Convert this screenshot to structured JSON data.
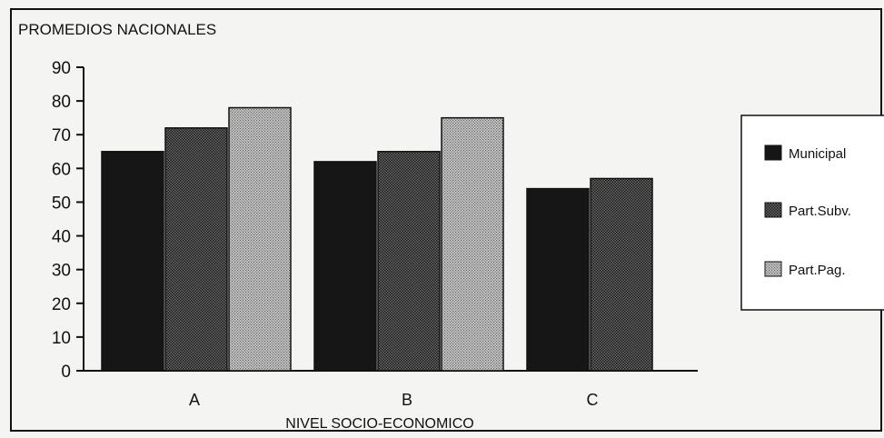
{
  "chart_data": {
    "type": "bar",
    "title": "PROMEDIOS NACIONALES",
    "xlabel": "NIVEL SOCIO-ECONOMICO",
    "ylabel": "",
    "ylim": [
      0,
      90
    ],
    "yticks": [
      0,
      10,
      20,
      30,
      40,
      50,
      60,
      70,
      80,
      90
    ],
    "categories": [
      "A",
      "B",
      "C"
    ],
    "series": [
      {
        "name": "Municipal",
        "values": [
          65,
          62,
          54
        ],
        "pattern": "solid-dark"
      },
      {
        "name": "Part.Subv.",
        "values": [
          72,
          65,
          57
        ],
        "pattern": "dense-dots"
      },
      {
        "name": "Part.Pag.",
        "values": [
          78,
          75,
          null
        ],
        "pattern": "light-dots"
      }
    ],
    "legend_position": "right",
    "grid": false,
    "colors": {
      "ink": "#111111",
      "background": "#f4f4f2"
    }
  }
}
